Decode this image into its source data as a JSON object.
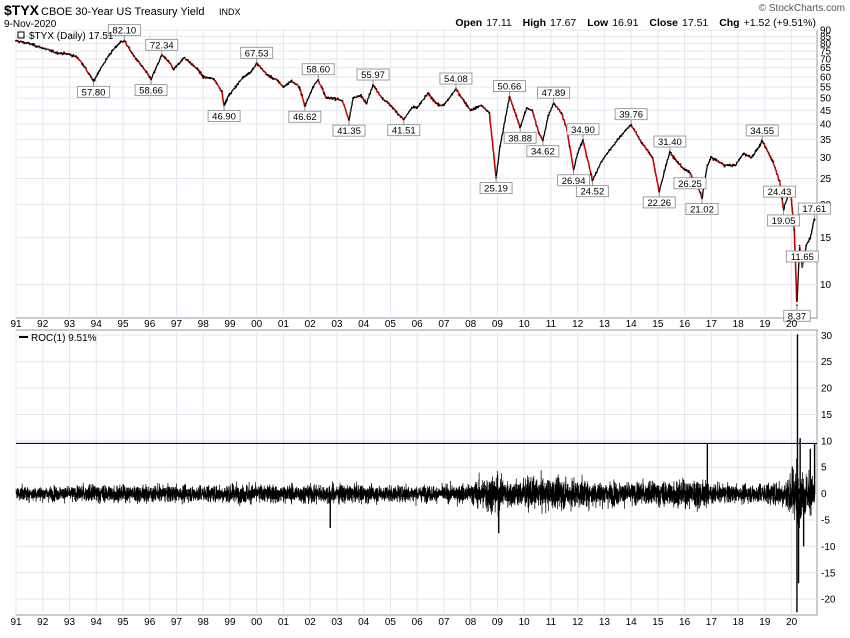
{
  "header": {
    "symbol": "$TYX",
    "name": "CBOE 30-Year US Treasury Yield",
    "exchange": "INDX",
    "date": "9-Nov-2020",
    "watermark": "© StockCharts.com",
    "quote": {
      "open_label": "Open",
      "open": "17.11",
      "high_label": "High",
      "high": "17.67",
      "low_label": "Low",
      "low": "16.91",
      "close_label": "Close",
      "close": "17.51",
      "chg_label": "Chg",
      "chg": "+1.52 (+9.51%)"
    }
  },
  "colors": {
    "up": "#000000",
    "down": "#cc0000",
    "roc_line": "#000000",
    "ref_line": "#000080",
    "grid": "#e3e7ef",
    "frame": "#8c97a8"
  },
  "chart_data": [
    {
      "type": "line",
      "legend": "$TYX (Daily) 17.51",
      "scale": "log",
      "ylim": [
        7.5,
        90
      ],
      "yticks": [
        10,
        15,
        20,
        25,
        30,
        35,
        40,
        45,
        50,
        55,
        60,
        65,
        70,
        75,
        80,
        85,
        90
      ],
      "xlim": [
        1991,
        2020.95
      ],
      "xticks": [
        {
          "x": 1991,
          "label": "91"
        },
        {
          "x": 1992,
          "label": "92"
        },
        {
          "x": 1993,
          "label": "93"
        },
        {
          "x": 1994,
          "label": "94"
        },
        {
          "x": 1995,
          "label": "95"
        },
        {
          "x": 1996,
          "label": "96"
        },
        {
          "x": 1997,
          "label": "97"
        },
        {
          "x": 1998,
          "label": "98"
        },
        {
          "x": 1999,
          "label": "99"
        },
        {
          "x": 2000,
          "label": "00"
        },
        {
          "x": 2001,
          "label": "01"
        },
        {
          "x": 2002,
          "label": "02"
        },
        {
          "x": 2003,
          "label": "03"
        },
        {
          "x": 2004,
          "label": "04"
        },
        {
          "x": 2005,
          "label": "05"
        },
        {
          "x": 2006,
          "label": "06"
        },
        {
          "x": 2007,
          "label": "07"
        },
        {
          "x": 2008,
          "label": "08"
        },
        {
          "x": 2009,
          "label": "09"
        },
        {
          "x": 2010,
          "label": "10"
        },
        {
          "x": 2011,
          "label": "11"
        },
        {
          "x": 2012,
          "label": "12"
        },
        {
          "x": 2013,
          "label": "13"
        },
        {
          "x": 2014,
          "label": "14"
        },
        {
          "x": 2015,
          "label": "15"
        },
        {
          "x": 2016,
          "label": "16"
        },
        {
          "x": 2017,
          "label": "17"
        },
        {
          "x": 2018,
          "label": "18"
        },
        {
          "x": 2019,
          "label": "19"
        },
        {
          "x": 2020,
          "label": "20"
        }
      ],
      "series": [
        {
          "points": [
            [
              1991.0,
              82
            ],
            [
              1991.5,
              80
            ],
            [
              1992.0,
              77
            ],
            [
              1992.5,
              74
            ],
            [
              1993.0,
              73
            ],
            [
              1993.3,
              71
            ],
            [
              1993.5,
              67
            ],
            [
              1993.8,
              60
            ],
            [
              1993.9,
              57.8
            ],
            [
              1994.1,
              63
            ],
            [
              1994.5,
              73
            ],
            [
              1994.8,
              79
            ],
            [
              1994.9,
              81
            ],
            [
              1995.05,
              82.1
            ],
            [
              1995.4,
              72
            ],
            [
              1995.7,
              66
            ],
            [
              1996.0,
              60
            ],
            [
              1996.05,
              58.66
            ],
            [
              1996.3,
              67
            ],
            [
              1996.45,
              72.34
            ],
            [
              1996.7,
              69
            ],
            [
              1996.9,
              64
            ],
            [
              1997.0,
              66
            ],
            [
              1997.3,
              71
            ],
            [
              1997.5,
              68
            ],
            [
              1997.8,
              64
            ],
            [
              1998.0,
              60
            ],
            [
              1998.4,
              59
            ],
            [
              1998.7,
              53
            ],
            [
              1998.78,
              46.9
            ],
            [
              1998.95,
              51
            ],
            [
              1999.2,
              55
            ],
            [
              1999.5,
              60
            ],
            [
              1999.8,
              63
            ],
            [
              2000.0,
              67.53
            ],
            [
              2000.4,
              61
            ],
            [
              2000.8,
              58
            ],
            [
              2001.0,
              55
            ],
            [
              2001.3,
              58
            ],
            [
              2001.6,
              55
            ],
            [
              2001.8,
              46.62
            ],
            [
              2002.1,
              55
            ],
            [
              2002.3,
              58.6
            ],
            [
              2002.6,
              50
            ],
            [
              2002.9,
              50
            ],
            [
              2003.2,
              49
            ],
            [
              2003.45,
              41.35
            ],
            [
              2003.6,
              50
            ],
            [
              2003.9,
              51
            ],
            [
              2004.1,
              48
            ],
            [
              2004.35,
              55.97
            ],
            [
              2004.7,
              50
            ],
            [
              2005.0,
              47
            ],
            [
              2005.5,
              41.51
            ],
            [
              2005.8,
              46
            ],
            [
              2006.0,
              46
            ],
            [
              2006.4,
              52
            ],
            [
              2006.8,
              47
            ],
            [
              2007.0,
              47
            ],
            [
              2007.45,
              54.08
            ],
            [
              2007.8,
              48
            ],
            [
              2008.0,
              45
            ],
            [
              2008.4,
              47
            ],
            [
              2008.7,
              44
            ],
            [
              2008.95,
              25.19
            ],
            [
              2009.1,
              33
            ],
            [
              2009.45,
              50.66
            ],
            [
              2009.7,
              43
            ],
            [
              2009.85,
              38.88
            ],
            [
              2010.1,
              46
            ],
            [
              2010.3,
              45
            ],
            [
              2010.55,
              37
            ],
            [
              2010.7,
              34.62
            ],
            [
              2010.9,
              43
            ],
            [
              2011.1,
              47.89
            ],
            [
              2011.4,
              44
            ],
            [
              2011.6,
              38
            ],
            [
              2011.7,
              33
            ],
            [
              2011.85,
              26.94
            ],
            [
              2012.0,
              31
            ],
            [
              2012.2,
              34.9
            ],
            [
              2012.5,
              26
            ],
            [
              2012.55,
              24.52
            ],
            [
              2012.9,
              29
            ],
            [
              2013.1,
              31
            ],
            [
              2013.5,
              35
            ],
            [
              2013.8,
              38
            ],
            [
              2014.0,
              39.76
            ],
            [
              2014.4,
              34
            ],
            [
              2014.8,
              30
            ],
            [
              2015.05,
              22.26
            ],
            [
              2015.3,
              28
            ],
            [
              2015.45,
              31.4
            ],
            [
              2015.7,
              29
            ],
            [
              2016.0,
              27
            ],
            [
              2016.2,
              26.25
            ],
            [
              2016.6,
              22
            ],
            [
              2016.65,
              21.02
            ],
            [
              2016.85,
              28
            ],
            [
              2017.0,
              30
            ],
            [
              2017.5,
              28
            ],
            [
              2017.9,
              28
            ],
            [
              2018.2,
              31
            ],
            [
              2018.5,
              30
            ],
            [
              2018.8,
              33
            ],
            [
              2018.9,
              34.55
            ],
            [
              2019.3,
              29
            ],
            [
              2019.55,
              24.43
            ],
            [
              2019.65,
              21
            ],
            [
              2019.7,
              19.05
            ],
            [
              2019.95,
              23
            ],
            [
              2020.1,
              16
            ],
            [
              2020.2,
              8.37
            ],
            [
              2020.3,
              14
            ],
            [
              2020.4,
              11.65
            ],
            [
              2020.55,
              14
            ],
            [
              2020.7,
              15
            ],
            [
              2020.85,
              17.61
            ],
            [
              2020.86,
              17.51
            ]
          ]
        }
      ],
      "annotations": [
        {
          "x": 1993.9,
          "y": 57.8,
          "label": "57.80",
          "pos": "below"
        },
        {
          "x": 1995.05,
          "y": 82.1,
          "label": "82.10",
          "pos": "above"
        },
        {
          "x": 1996.05,
          "y": 58.66,
          "label": "58.66",
          "pos": "below"
        },
        {
          "x": 1996.45,
          "y": 72.34,
          "label": "72.34",
          "pos": "above"
        },
        {
          "x": 1998.78,
          "y": 46.9,
          "label": "46.90",
          "pos": "below"
        },
        {
          "x": 2000.0,
          "y": 67.53,
          "label": "67.53",
          "pos": "above"
        },
        {
          "x": 2001.8,
          "y": 46.62,
          "label": "46.62",
          "pos": "below"
        },
        {
          "x": 2002.3,
          "y": 58.6,
          "label": "58.60",
          "pos": "above"
        },
        {
          "x": 2003.45,
          "y": 41.35,
          "label": "41.35",
          "pos": "below"
        },
        {
          "x": 2004.35,
          "y": 55.97,
          "label": "55.97",
          "pos": "above"
        },
        {
          "x": 2005.5,
          "y": 41.51,
          "label": "41.51",
          "pos": "below"
        },
        {
          "x": 2007.45,
          "y": 54.08,
          "label": "54.08",
          "pos": "above"
        },
        {
          "x": 2008.95,
          "y": 25.19,
          "label": "25.19",
          "pos": "below"
        },
        {
          "x": 2009.45,
          "y": 50.66,
          "label": "50.66",
          "pos": "above"
        },
        {
          "x": 2009.85,
          "y": 38.88,
          "label": "38.88",
          "pos": "below"
        },
        {
          "x": 2010.7,
          "y": 34.62,
          "label": "34.62",
          "pos": "below"
        },
        {
          "x": 2011.1,
          "y": 47.89,
          "label": "47.89",
          "pos": "above"
        },
        {
          "x": 2011.85,
          "y": 26.94,
          "label": "26.94",
          "pos": "below"
        },
        {
          "x": 2012.2,
          "y": 34.9,
          "label": "34.90",
          "pos": "above"
        },
        {
          "x": 2012.55,
          "y": 24.52,
          "label": "24.52",
          "pos": "below"
        },
        {
          "x": 2014.0,
          "y": 39.76,
          "label": "39.76",
          "pos": "above"
        },
        {
          "x": 2015.05,
          "y": 22.26,
          "label": "22.26",
          "pos": "below"
        },
        {
          "x": 2015.45,
          "y": 31.4,
          "label": "31.40",
          "pos": "above"
        },
        {
          "x": 2016.2,
          "y": 26.25,
          "label": "26.25",
          "pos": "below"
        },
        {
          "x": 2016.65,
          "y": 21.02,
          "label": "21.02",
          "pos": "below"
        },
        {
          "x": 2018.9,
          "y": 34.55,
          "label": "34.55",
          "pos": "above"
        },
        {
          "x": 2019.55,
          "y": 24.43,
          "label": "24.43",
          "pos": "below"
        },
        {
          "x": 2019.7,
          "y": 19.05,
          "label": "19.05",
          "pos": "below"
        },
        {
          "x": 2020.2,
          "y": 8.37,
          "label": "8.37",
          "pos": "below"
        },
        {
          "x": 2020.4,
          "y": 11.65,
          "label": "11.65",
          "pos": "above"
        },
        {
          "x": 2020.85,
          "y": 17.61,
          "label": "17.61",
          "pos": "above"
        }
      ]
    },
    {
      "type": "line",
      "legend": "ROC(1) 9.51%",
      "ylim": [
        -23,
        31
      ],
      "yticks": [
        -20,
        -15,
        -10,
        -5,
        0,
        5,
        10,
        15,
        20,
        25,
        30
      ],
      "xlim": [
        1991,
        2020.95
      ],
      "reference_line": 9.51,
      "volatility_envelope": [
        [
          1991,
          2.2
        ],
        [
          1993,
          2.2
        ],
        [
          1994,
          2.8
        ],
        [
          1996,
          2.5
        ],
        [
          1998,
          2.6
        ],
        [
          1999,
          3.0
        ],
        [
          2001,
          2.7
        ],
        [
          2003,
          2.9
        ],
        [
          2005,
          2.5
        ],
        [
          2007,
          2.4
        ],
        [
          2008,
          3.0
        ],
        [
          2008.8,
          6.5
        ],
        [
          2009.3,
          4.2
        ],
        [
          2010,
          4.5
        ],
        [
          2011.5,
          4.8
        ],
        [
          2012.5,
          4.0
        ],
        [
          2014,
          3.3
        ],
        [
          2015.5,
          4.0
        ],
        [
          2016.5,
          4.5
        ],
        [
          2017,
          3.0
        ],
        [
          2018,
          2.6
        ],
        [
          2019,
          3.2
        ],
        [
          2019.8,
          4.5
        ],
        [
          2020.1,
          9.0
        ],
        [
          2020.3,
          8.0
        ],
        [
          2020.6,
          6.0
        ],
        [
          2020.95,
          5.5
        ]
      ],
      "spikes": [
        [
          2020.2,
          -22.5
        ],
        [
          2020.22,
          30.2
        ],
        [
          2020.26,
          -17
        ],
        [
          2020.32,
          10.5
        ],
        [
          2016.85,
          9.5
        ],
        [
          2009.05,
          -7.5
        ],
        [
          2002.75,
          -6.5
        ],
        [
          2020.45,
          -10
        ],
        [
          2020.7,
          8.5
        ],
        [
          2020.86,
          9.51
        ]
      ]
    }
  ]
}
